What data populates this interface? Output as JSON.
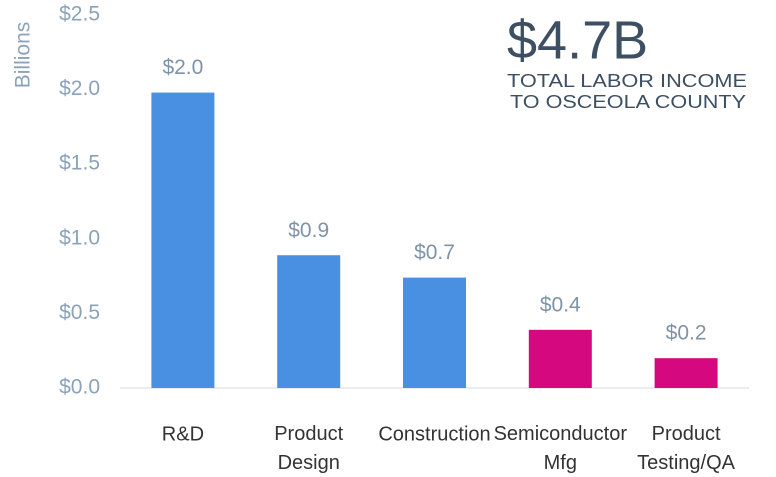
{
  "chart_data": {
    "type": "bar",
    "y_axis_label": "Billions",
    "annotation": {
      "headline": "$4.7B",
      "lines": [
        "TOTAL LABOR INCOME",
        "TO OSCEOLA COUNTY"
      ]
    },
    "categories": [
      "R&D",
      "Product Design",
      "Construction",
      "Semiconductor Mfg",
      "Product Testing/QA"
    ],
    "values": [
      1.98,
      0.89,
      0.74,
      0.39,
      0.2
    ],
    "value_labels": [
      "$2.0",
      "$0.9",
      "$0.7",
      "$0.4",
      "$0.2"
    ],
    "colors": [
      "#4a90e2",
      "#4a90e2",
      "#4a90e2",
      "#d6087f",
      "#d6087f"
    ],
    "ylim": [
      0,
      2.5
    ],
    "yticks": [
      {
        "value": 0,
        "label": "$0.0"
      },
      {
        "value": 0.5,
        "label": "$0.5"
      },
      {
        "value": 1,
        "label": "$1.0"
      },
      {
        "value": 1.5,
        "label": "$1.5"
      },
      {
        "value": 2,
        "label": "$2.0"
      },
      {
        "value": 2.5,
        "label": "$2.5"
      }
    ],
    "grid": false
  }
}
